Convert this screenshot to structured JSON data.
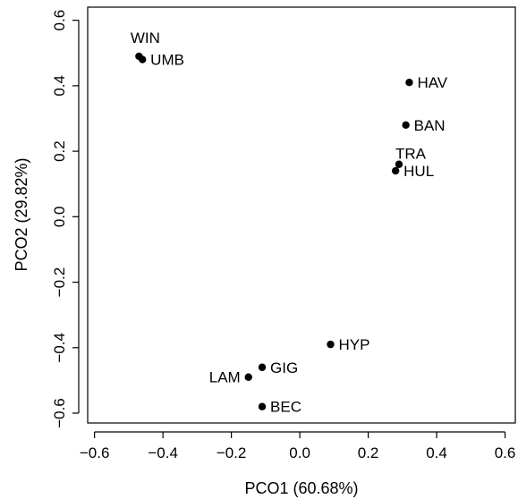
{
  "chart_data": {
    "type": "scatter",
    "title": "",
    "xlabel": "PCO1 (60.68%)",
    "ylabel": "PCO2 (29.82%)",
    "xlim": [
      -0.62,
      0.63
    ],
    "ylim": [
      -0.63,
      0.64
    ],
    "x_ticks": [
      -0.6,
      -0.4,
      -0.2,
      0.0,
      0.2,
      0.4,
      0.6
    ],
    "x_tick_labels": [
      "−0.6",
      "−0.4",
      "−0.2",
      "0.0",
      "0.2",
      "0.4",
      "0.6"
    ],
    "y_ticks": [
      -0.6,
      -0.4,
      -0.2,
      0.0,
      0.2,
      0.4,
      0.6
    ],
    "y_tick_labels": [
      "−0.6",
      "−0.4",
      "−0.2",
      "0.0",
      "0.2",
      "0.4",
      "0.6"
    ],
    "grid": false,
    "legend": "none",
    "point_color": "#000000",
    "points": [
      {
        "label": "WIN",
        "x": -0.47,
        "y": 0.49,
        "label_pos": "above"
      },
      {
        "label": "UMB",
        "x": -0.46,
        "y": 0.48,
        "label_pos": "right"
      },
      {
        "label": "HAV",
        "x": 0.32,
        "y": 0.41,
        "label_pos": "right"
      },
      {
        "label": "BAN",
        "x": 0.31,
        "y": 0.28,
        "label_pos": "right"
      },
      {
        "label": "TRA",
        "x": 0.29,
        "y": 0.16,
        "label_pos": "above-right"
      },
      {
        "label": "HUL",
        "x": 0.28,
        "y": 0.14,
        "label_pos": "right"
      },
      {
        "label": "HYP",
        "x": 0.09,
        "y": -0.39,
        "label_pos": "right"
      },
      {
        "label": "GIG",
        "x": -0.11,
        "y": -0.46,
        "label_pos": "right"
      },
      {
        "label": "LAM",
        "x": -0.15,
        "y": -0.49,
        "label_pos": "left"
      },
      {
        "label": "BEC",
        "x": -0.11,
        "y": -0.58,
        "label_pos": "right"
      }
    ]
  }
}
